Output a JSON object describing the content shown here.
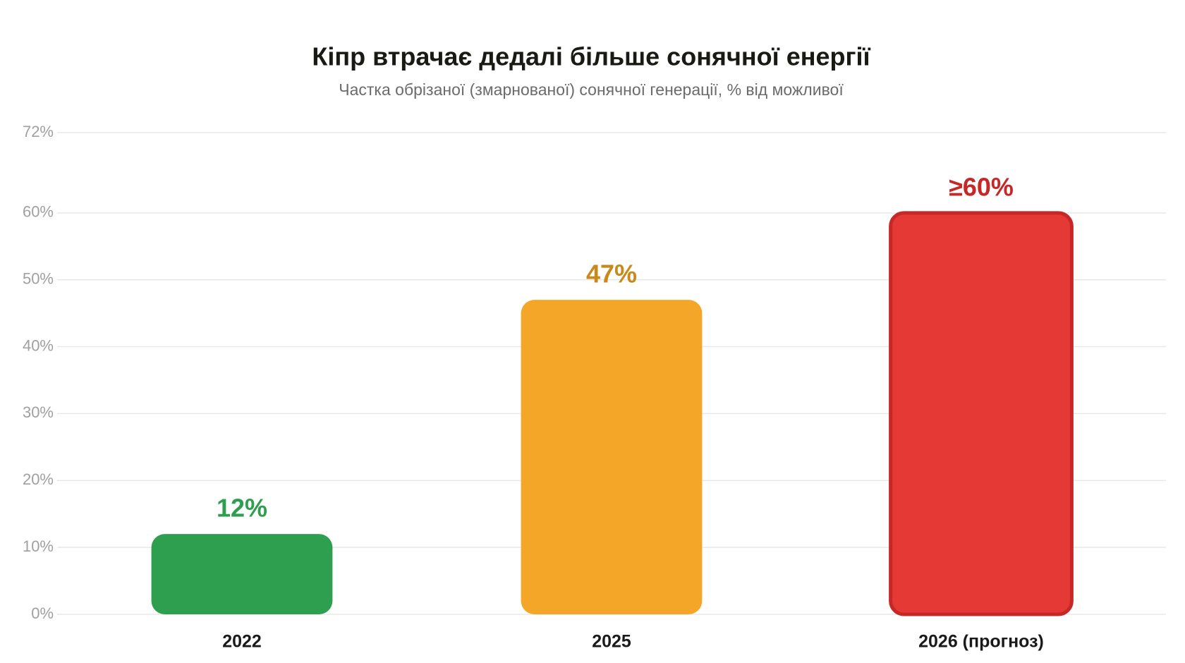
{
  "chart_data": {
    "type": "bar",
    "title": "Кіпр втрачає дедалі більше сонячної енергії",
    "subtitle": "Частка обрізаної (змарнованої) сонячної генерації, % від можливої",
    "categories": [
      "2022",
      "2025",
      "2026 (прогноз)"
    ],
    "values": [
      12,
      47,
      60
    ],
    "value_labels": [
      "12%",
      "47%",
      "≥60%"
    ],
    "colors": [
      "#2e9e4f",
      "#f4a628",
      "#e53935"
    ],
    "label_colors": [
      "#2e9e4f",
      "#c8891a",
      "#c62828"
    ],
    "edge_colors": [
      null,
      null,
      "#c62828"
    ],
    "ylim": [
      0,
      72
    ],
    "yticks": [
      {
        "value": 0,
        "label": "0%"
      },
      {
        "value": 10,
        "label": "10%"
      },
      {
        "value": 20,
        "label": "20%"
      },
      {
        "value": 30,
        "label": "30%"
      },
      {
        "value": 40,
        "label": "40%"
      },
      {
        "value": 50,
        "label": "50%"
      },
      {
        "value": 60,
        "label": "60%"
      },
      {
        "value": 72,
        "label": "72%"
      }
    ],
    "grid": true
  }
}
